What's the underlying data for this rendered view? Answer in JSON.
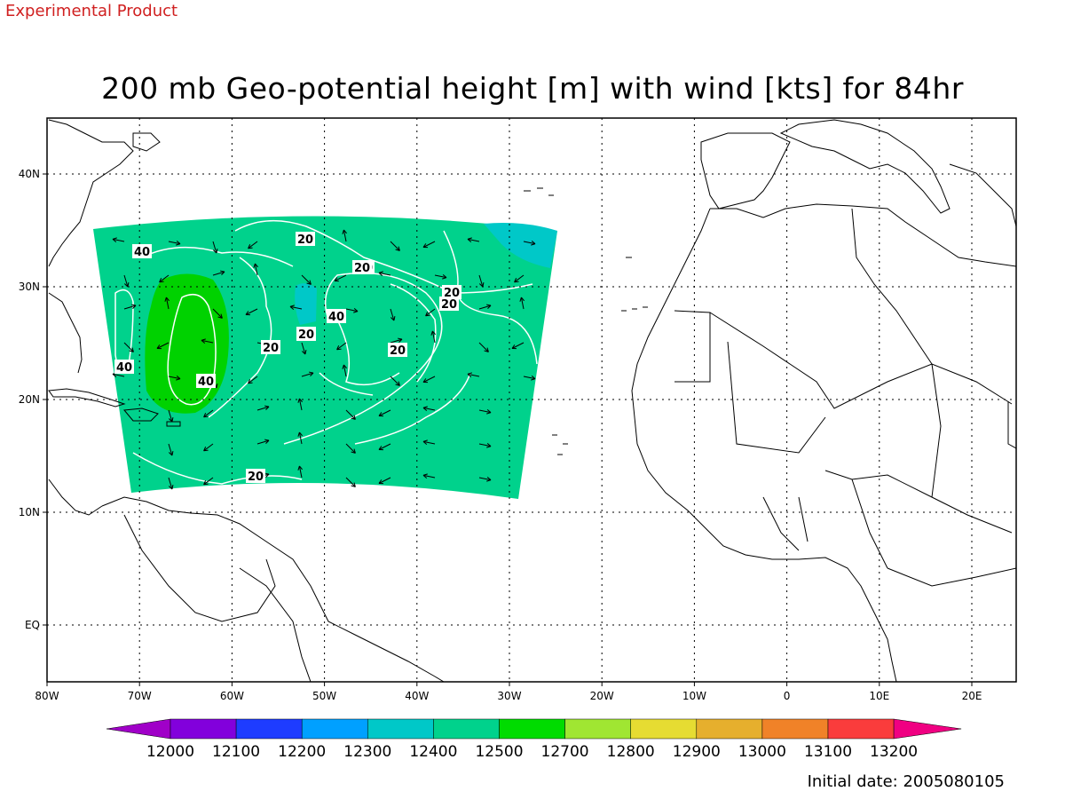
{
  "header": {
    "product_note": "Experimental Product",
    "title": "200 mb Geo-potential height [m] with wind [kts] for 84hr"
  },
  "footer": {
    "initial_date": "Initial date: 2005080105"
  },
  "map": {
    "lon_labels": [
      "80W",
      "70W",
      "60W",
      "50W",
      "40W",
      "30W",
      "20W",
      "10W",
      "0",
      "10E",
      "20E"
    ],
    "lat_labels": [
      "40N",
      "30N",
      "20N",
      "10N",
      "EQ"
    ],
    "contour_labels": [
      "40",
      "20",
      "40",
      "20",
      "20",
      "40",
      "20",
      "20",
      "40",
      "20",
      "20",
      "20",
      "20"
    ],
    "colors": {
      "field_main": "#00d28c",
      "field_low": "#00c8c8",
      "field_high": "#00d200",
      "contour": "#ffffff",
      "coast": "#000000"
    }
  },
  "colorbar": {
    "labels": [
      "12000",
      "12100",
      "12200",
      "12300",
      "12400",
      "12500",
      "12700",
      "12800",
      "12900",
      "13000",
      "13100",
      "13200"
    ],
    "colors": [
      "#a000c8",
      "#8200dc",
      "#1e3cff",
      "#00a0ff",
      "#00c8c8",
      "#00d28c",
      "#00dc00",
      "#a0e632",
      "#e6dc32",
      "#e6af2d",
      "#f08228",
      "#fa3c3c",
      "#f00082"
    ]
  }
}
